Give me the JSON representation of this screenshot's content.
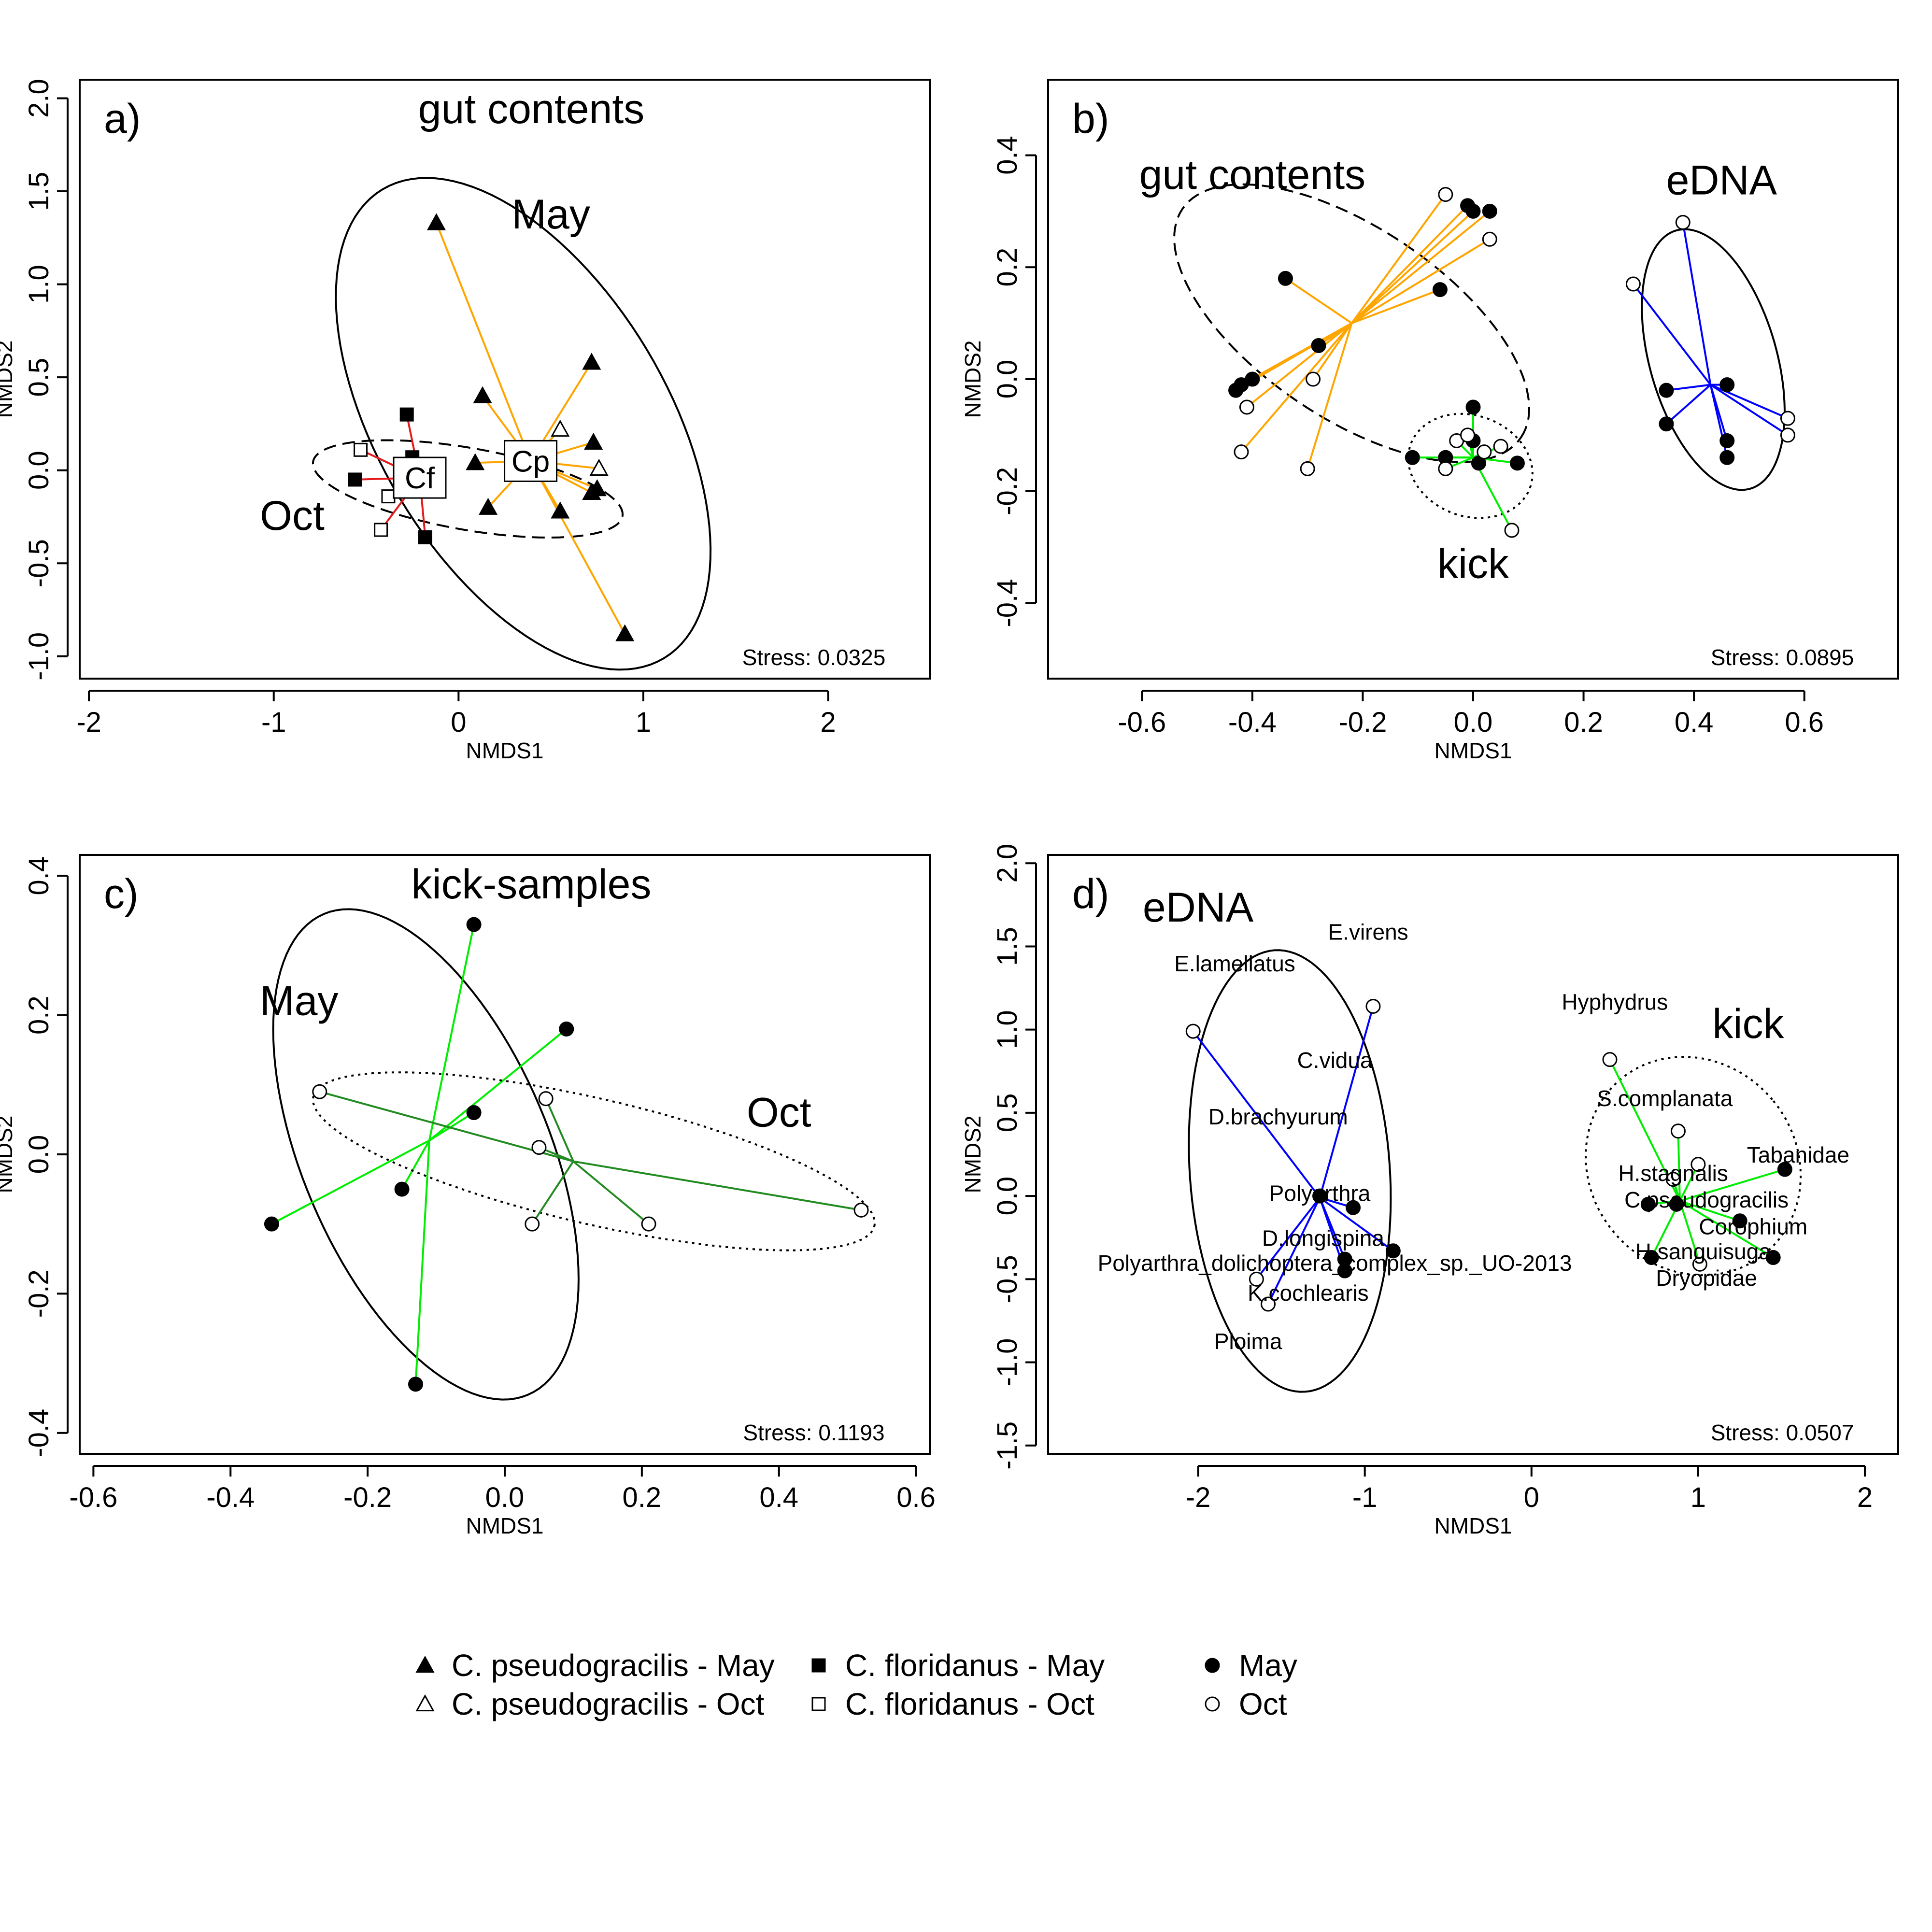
{
  "legend": {
    "items": [
      {
        "label": "C. pseudogracilis - May",
        "symbol": "triangle-filled"
      },
      {
        "label": "C. pseudogracilis - Oct",
        "symbol": "triangle-open"
      },
      {
        "label": "C. floridanus - May",
        "symbol": "square-filled"
      },
      {
        "label": "C. floridanus - Oct",
        "symbol": "square-open"
      },
      {
        "label": "May",
        "symbol": "circle-filled"
      },
      {
        "label": "Oct",
        "symbol": "circle-open"
      }
    ]
  },
  "chart_data": [
    {
      "id": "a",
      "type": "scatter",
      "panel_label": "a)",
      "title": "gut contents",
      "xlabel": "NMDS1",
      "ylabel": "NMDS2",
      "stress": "Stress: 0.0325",
      "xlim": [
        -2.05,
        2.55
      ],
      "ylim": [
        -1.12,
        2.1
      ],
      "xticks": [
        -2,
        -1,
        0,
        1,
        2
      ],
      "yticks": [
        -1.0,
        -0.5,
        0.0,
        0.5,
        1.0,
        1.5,
        2.0
      ],
      "ytick_labels": [
        "-1.0",
        "-0.5",
        "0.0",
        "0.5",
        "1.0",
        "1.5",
        "2.0"
      ],
      "annotations": [
        {
          "text": "May",
          "x": 0.5,
          "y": 1.3
        },
        {
          "text": "Oct",
          "x": -0.9,
          "y": -0.32
        }
      ],
      "ellipses": [
        {
          "cx": 0.35,
          "cy": 0.25,
          "rx": 0.78,
          "ry": 1.47,
          "angle": 31,
          "style": "solid"
        },
        {
          "cx": 0.05,
          "cy": -0.1,
          "rx": 0.85,
          "ry": 0.22,
          "angle": -10,
          "style": "dashed"
        }
      ],
      "centroids": [
        {
          "label": "Cf",
          "x": -0.21,
          "y": -0.04,
          "color": "#e41a1c"
        },
        {
          "label": "Cp",
          "x": 0.39,
          "y": 0.05,
          "color": "#ffa500"
        }
      ],
      "series": [
        {
          "name": "C. pseudogracilis - May",
          "symbol": "triangle",
          "filled": true,
          "group": "Cp",
          "points": [
            [
              -0.12,
              1.33
            ],
            [
              0.72,
              0.58
            ],
            [
              0.13,
              0.4
            ],
            [
              0.73,
              0.15
            ],
            [
              0.75,
              -0.1
            ],
            [
              0.72,
              -0.12
            ],
            [
              0.16,
              -0.2
            ],
            [
              0.55,
              -0.22
            ],
            [
              0.9,
              -0.88
            ],
            [
              0.09,
              0.04
            ]
          ]
        },
        {
          "name": "C. pseudogracilis - Oct",
          "symbol": "triangle",
          "filled": false,
          "group": "Cp",
          "points": [
            [
              0.55,
              0.22
            ],
            [
              0.76,
              0.01
            ]
          ]
        },
        {
          "name": "C. floridanus - May",
          "symbol": "square",
          "filled": true,
          "group": "Cf",
          "points": [
            [
              -0.28,
              0.3
            ],
            [
              -0.56,
              -0.05
            ],
            [
              -0.18,
              -0.36
            ],
            [
              -0.25,
              0.07
            ]
          ]
        },
        {
          "name": "C. floridanus - Oct",
          "symbol": "square",
          "filled": false,
          "group": "Cf",
          "points": [
            [
              -0.53,
              0.11
            ],
            [
              -0.38,
              -0.14
            ],
            [
              -0.42,
              -0.32
            ]
          ]
        }
      ]
    },
    {
      "id": "b",
      "type": "scatter",
      "panel_label": "b)",
      "xlabel": "NMDS1",
      "ylabel": "NMDS2",
      "stress": "Stress: 0.0895",
      "xlim": [
        -0.77,
        0.77
      ],
      "ylim": [
        -0.535,
        0.535
      ],
      "xticks": [
        -0.6,
        -0.4,
        -0.2,
        0.0,
        0.2,
        0.4,
        0.6
      ],
      "xtick_labels": [
        "-0.6",
        "-0.4",
        "-0.2",
        "0.0",
        "0.2",
        "0.4",
        "0.6"
      ],
      "yticks": [
        -0.4,
        -0.2,
        0.0,
        0.2,
        0.4
      ],
      "ytick_labels": [
        "-0.4",
        "-0.2",
        "0.0",
        "0.2",
        "0.4"
      ],
      "annotations": [
        {
          "text": "gut contents",
          "x": -0.4,
          "y": 0.34
        },
        {
          "text": "eDNA",
          "x": 0.45,
          "y": 0.33
        },
        {
          "text": "kick",
          "x": 0.0,
          "y": -0.355
        }
      ],
      "groups": [
        {
          "name": "gut contents",
          "color": "#ffa500",
          "centroid": [
            -0.22,
            0.1
          ],
          "ellipse": {
            "cx": -0.22,
            "cy": 0.1,
            "rx": 0.37,
            "ry": 0.17,
            "angle": -34,
            "style": "dashed"
          },
          "may": [
            [
              -0.34,
              0.18
            ],
            [
              -0.43,
              -0.02
            ],
            [
              -0.42,
              -0.01
            ],
            [
              -0.4,
              0.0
            ],
            [
              -0.28,
              0.06
            ],
            [
              -0.06,
              0.16
            ],
            [
              -0.01,
              0.31
            ],
            [
              0.0,
              0.3
            ],
            [
              0.03,
              0.3
            ]
          ],
          "oct": [
            [
              -0.05,
              0.33
            ],
            [
              0.03,
              0.25
            ],
            [
              -0.41,
              -0.05
            ],
            [
              -0.29,
              0.0
            ],
            [
              -0.42,
              -0.13
            ],
            [
              -0.3,
              -0.16
            ]
          ]
        },
        {
          "name": "kick",
          "color": "#00ee00",
          "centroid": [
            0.0,
            -0.14
          ],
          "ellipse": {
            "cx": -0.005,
            "cy": -0.155,
            "rx": 0.115,
            "ry": 0.09,
            "angle": -20,
            "style": "dotted"
          },
          "may": [
            [
              -0.11,
              -0.14
            ],
            [
              -0.05,
              -0.14
            ],
            [
              0.0,
              -0.05
            ],
            [
              0.0,
              -0.11
            ],
            [
              0.01,
              -0.15
            ],
            [
              0.08,
              -0.15
            ]
          ],
          "oct": [
            [
              -0.05,
              -0.16
            ],
            [
              -0.03,
              -0.11
            ],
            [
              -0.01,
              -0.1
            ],
            [
              0.02,
              -0.13
            ],
            [
              0.05,
              -0.12
            ],
            [
              0.07,
              -0.27
            ]
          ]
        },
        {
          "name": "eDNA",
          "color": "#0000ff",
          "centroid": [
            0.43,
            -0.01
          ],
          "ellipse": {
            "cx": 0.435,
            "cy": 0.035,
            "rx": 0.115,
            "ry": 0.24,
            "angle": 16,
            "style": "solid"
          },
          "may": [
            [
              0.35,
              -0.02
            ],
            [
              0.35,
              -0.08
            ],
            [
              0.46,
              -0.01
            ],
            [
              0.46,
              -0.11
            ],
            [
              0.46,
              -0.14
            ]
          ],
          "oct": [
            [
              0.38,
              0.28
            ],
            [
              0.29,
              0.17
            ],
            [
              0.57,
              -0.07
            ],
            [
              0.57,
              -0.1
            ]
          ]
        }
      ]
    },
    {
      "id": "c",
      "type": "scatter",
      "panel_label": "c)",
      "title": "kick-samples",
      "xlabel": "NMDS1",
      "ylabel": "NMDS2",
      "stress": "Stress: 0.1193",
      "xlim": [
        -0.62,
        0.62
      ],
      "ylim": [
        -0.43,
        0.43
      ],
      "xticks": [
        -0.6,
        -0.4,
        -0.2,
        0.0,
        0.2,
        0.4,
        0.6
      ],
      "xtick_labels": [
        "-0.6",
        "-0.4",
        "-0.2",
        "0.0",
        "0.2",
        "0.4",
        "0.6"
      ],
      "yticks": [
        -0.4,
        -0.2,
        0.0,
        0.2,
        0.4
      ],
      "ytick_labels": [
        "-0.4",
        "-0.2",
        "0.0",
        "0.2",
        "0.4"
      ],
      "annotations": [
        {
          "text": "May",
          "x": -0.3,
          "y": 0.2
        },
        {
          "text": "Oct",
          "x": 0.4,
          "y": 0.04
        }
      ],
      "groups": [
        {
          "name": "May",
          "color": "#00ee00",
          "centroid": [
            -0.11,
            0.02
          ],
          "ellipse": {
            "cx": -0.115,
            "cy": 0.0,
            "rx": 0.18,
            "ry": 0.375,
            "angle": 23,
            "style": "solid"
          },
          "may": [
            [
              -0.045,
              0.33
            ],
            [
              0.09,
              0.18
            ],
            [
              -0.045,
              0.06
            ],
            [
              -0.15,
              -0.05
            ],
            [
              -0.34,
              -0.1
            ],
            [
              -0.13,
              -0.33
            ]
          ],
          "oct": []
        },
        {
          "name": "Oct",
          "color": "#228b22",
          "centroid": [
            0.1,
            -0.01
          ],
          "ellipse": {
            "cx": 0.13,
            "cy": -0.01,
            "rx": 0.42,
            "ry": 0.09,
            "angle": -13,
            "style": "dotted"
          },
          "may": [],
          "oct": [
            [
              -0.27,
              0.09
            ],
            [
              0.06,
              0.08
            ],
            [
              0.05,
              0.01
            ],
            [
              0.04,
              -0.1
            ],
            [
              0.21,
              -0.1
            ],
            [
              0.52,
              -0.08
            ]
          ]
        }
      ]
    },
    {
      "id": "d",
      "type": "scatter",
      "panel_label": "d)",
      "xlabel": "NMDS1",
      "ylabel": "NMDS2",
      "stress": "Stress: 0.0507",
      "xlim": [
        -2.9,
        2.2
      ],
      "ylim": [
        -1.55,
        2.05
      ],
      "xticks": [
        -2,
        -1,
        0,
        1,
        2
      ],
      "yticks": [
        -1.5,
        -1.0,
        -0.5,
        0.0,
        0.5,
        1.0,
        1.5,
        2.0
      ],
      "ytick_labels": [
        "-1.5",
        "-1.0",
        "-0.5",
        "0.0",
        "0.5",
        "1.0",
        "1.5",
        "2.0"
      ],
      "annotations": [
        {
          "text": "eDNA",
          "x": -2.0,
          "y": 1.65
        },
        {
          "text": "kick",
          "x": 1.3,
          "y": 0.95
        }
      ],
      "groups": [
        {
          "name": "eDNA",
          "color": "#0000ff",
          "centroid": [
            -1.27,
            -0.01
          ],
          "ellipse": {
            "cx": -1.45,
            "cy": 0.15,
            "rx": 0.6,
            "ry": 1.33,
            "angle": 4,
            "style": "solid"
          },
          "may": [
            [
              -1.27,
              0.0
            ],
            [
              -1.07,
              -0.07
            ],
            [
              -0.83,
              -0.33
            ],
            [
              -1.12,
              -0.38
            ],
            [
              -1.12,
              -0.45
            ]
          ],
          "oct": [
            [
              -2.03,
              0.99
            ],
            [
              -0.95,
              1.14
            ],
            [
              -1.65,
              -0.5
            ],
            [
              -1.58,
              -0.65
            ]
          ]
        },
        {
          "name": "kick",
          "color": "#00ee00",
          "centroid": [
            0.89,
            -0.03
          ],
          "ellipse": {
            "cx": 0.97,
            "cy": 0.18,
            "rx": 0.62,
            "ry": 0.68,
            "angle": 40,
            "style": "dotted"
          },
          "may": [
            [
              0.7,
              -0.05
            ],
            [
              0.87,
              -0.05
            ],
            [
              1.25,
              -0.15
            ],
            [
              1.52,
              0.16
            ],
            [
              0.72,
              -0.37
            ],
            [
              1.45,
              -0.37
            ]
          ],
          "oct": [
            [
              0.47,
              0.82
            ],
            [
              0.88,
              0.39
            ],
            [
              0.85,
              0.1
            ],
            [
              1.0,
              0.19
            ],
            [
              1.01,
              -0.41
            ]
          ]
        }
      ],
      "species_labels": [
        {
          "text": "E.virens",
          "x": -0.98,
          "y": 1.54
        },
        {
          "text": "E.lamellatus",
          "x": -1.78,
          "y": 1.35
        },
        {
          "text": "C.vidua",
          "x": -1.18,
          "y": 0.77
        },
        {
          "text": "D.brachyurum",
          "x": -1.52,
          "y": 0.43
        },
        {
          "text": "Polyarthra",
          "x": -1.27,
          "y": -0.03
        },
        {
          "text": "D.longispina",
          "x": -1.25,
          "y": -0.3
        },
        {
          "text": "Polyarthra_dolichoptera_complex_sp._UO-2013",
          "x": -1.18,
          "y": -0.45
        },
        {
          "text": "K.cochlearis",
          "x": -1.34,
          "y": -0.63
        },
        {
          "text": "Ploima",
          "x": -1.7,
          "y": -0.92
        },
        {
          "text": "Hyphydrus",
          "x": 0.5,
          "y": 1.12
        },
        {
          "text": "S.complanata",
          "x": 0.8,
          "y": 0.54
        },
        {
          "text": "Tabanidae",
          "x": 1.6,
          "y": 0.2
        },
        {
          "text": "H.stagnalis",
          "x": 0.85,
          "y": 0.09
        },
        {
          "text": "C.pseudogracilis",
          "x": 1.05,
          "y": -0.07
        },
        {
          "text": "Corophium",
          "x": 1.33,
          "y": -0.23
        },
        {
          "text": "H.sanguisuga",
          "x": 1.03,
          "y": -0.38
        },
        {
          "text": "Dryopidae",
          "x": 1.05,
          "y": -0.54
        }
      ]
    }
  ]
}
